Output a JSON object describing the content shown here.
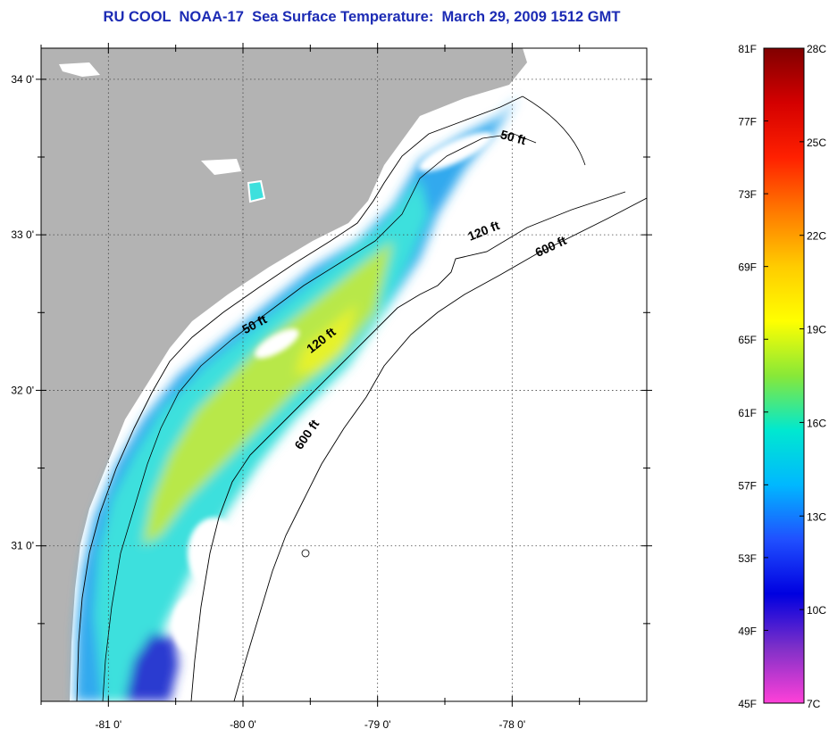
{
  "title": "RU COOL  NOAA-17  Sea Surface Temperature:  March 29, 2009 1512 GMT",
  "map": {
    "lon_range": [
      -81.5,
      -77.0
    ],
    "lat_range": [
      30.0,
      34.2
    ],
    "lat_ticks": [
      {
        "value": 34,
        "label": "34 0'"
      },
      {
        "value": 33,
        "label": "33 0'"
      },
      {
        "value": 32,
        "label": "32 0'"
      },
      {
        "value": 31,
        "label": "31 0'"
      }
    ],
    "lon_ticks": [
      {
        "value": -81,
        "label": "-81 0'"
      },
      {
        "value": -80,
        "label": "-80 0'"
      },
      {
        "value": -79,
        "label": "-79 0'"
      },
      {
        "value": -78,
        "label": "-78 0'"
      }
    ],
    "contour_labels": [
      {
        "text": "50 ft",
        "lon": -78.0,
        "lat": 33.6,
        "angle": 15
      },
      {
        "text": "120 ft",
        "lon": -78.2,
        "lat": 33.0,
        "angle": -22
      },
      {
        "text": "600 ft",
        "lon": -77.7,
        "lat": 32.9,
        "angle": -25
      },
      {
        "text": "50 ft",
        "lon": -79.9,
        "lat": 32.4,
        "angle": -28
      },
      {
        "text": "120 ft",
        "lon": -79.4,
        "lat": 32.3,
        "angle": -38
      },
      {
        "text": "600 ft",
        "lon": -79.5,
        "lat": 31.7,
        "angle": -55
      }
    ],
    "colors": {
      "land": "#b3b3b3",
      "cloud": "#ffffff",
      "sst_cool": "#33a9ee",
      "sst_mid": "#3de0dd",
      "sst_warm": "#b8e84a",
      "sst_warmest": "#e6f22a",
      "sst_cold": "#2a3ad0"
    }
  },
  "colorbar": {
    "celsius": [
      "28C",
      "25C",
      "22C",
      "19C",
      "16C",
      "13C",
      "10C",
      "7C"
    ],
    "fahrenheit": [
      "81F",
      "77F",
      "73F",
      "69F",
      "65F",
      "61F",
      "57F",
      "53F",
      "49F",
      "45F"
    ],
    "stops": [
      "#800000",
      "#d40000",
      "#ff2000",
      "#ff7a00",
      "#ffcc00",
      "#ffff00",
      "#88e838",
      "#00e8d0",
      "#00b8ff",
      "#2050ff",
      "#0000e0",
      "#8030c8",
      "#ff40d8"
    ]
  }
}
